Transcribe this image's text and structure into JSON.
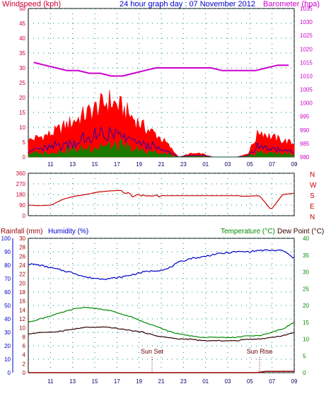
{
  "header": {
    "left_label": "Windspeed (kph)",
    "title": "24 hour graph day : 07 November 2012",
    "right_label": "Barometer (hpa)"
  },
  "colors": {
    "wind": "#ff0000",
    "gust_blue": "#0000cc",
    "gust_green": "#008800",
    "barometer": "#cc00cc",
    "direction": "#cc0000",
    "humidity": "#0000cc",
    "rainfall": "#990000",
    "temperature": "#008800",
    "dewpoint": "#330000",
    "grid": "#008888",
    "frame": "#000000"
  },
  "bottom_header": {
    "rainfall": "Rainfall (mm)",
    "humidity": "Humidity (%)",
    "temperature": "Temperature (°C)",
    "dewpoint": "Dew Point (°C)"
  },
  "annotations": {
    "sun_set": "Sun Set",
    "sun_rise": "Sun Rise"
  },
  "chart_data": [
    {
      "type": "area",
      "x": [
        "10",
        "11",
        "12",
        "13",
        "14",
        "15",
        "16",
        "17",
        "18",
        "19",
        "20",
        "21",
        "22",
        "23",
        "00",
        "01",
        "02",
        "03",
        "04",
        "05",
        "06",
        "07",
        "08",
        "09"
      ],
      "x_tick_labels": [
        "11",
        "13",
        "15",
        "17",
        "19",
        "21",
        "23",
        "01",
        "03",
        "05",
        "07",
        "09"
      ],
      "series": [
        {
          "values": [
            5,
            6,
            7,
            9,
            11,
            13,
            15,
            17,
            15,
            12,
            9,
            7,
            4,
            0,
            1,
            1,
            0,
            0,
            0,
            1,
            8,
            6,
            5,
            4
          ]
        },
        {
          "values": [
            1015,
            1014,
            1013,
            1012,
            1012,
            1011,
            1011,
            1010,
            1010,
            1011,
            1012,
            1013,
            1013,
            1013,
            1013,
            1013,
            1013,
            1012,
            1012,
            1012,
            1012,
            1013,
            1014,
            1014
          ]
        }
      ],
      "y_left": {
        "label": "Windspeed (kph)",
        "range": [
          0,
          50
        ],
        "ticks": [
          0,
          5,
          10,
          15,
          20,
          25,
          30,
          35,
          40,
          45,
          50
        ]
      },
      "y_right": {
        "label": "Barometer (hpa)",
        "range": [
          980,
          1035
        ],
        "ticks": [
          980,
          985,
          990,
          995,
          1000,
          1005,
          1010,
          1015,
          1020,
          1025,
          1030,
          1035
        ]
      }
    },
    {
      "type": "line",
      "x": [
        "10",
        "11",
        "12",
        "13",
        "14",
        "15",
        "16",
        "17",
        "18",
        "19",
        "20",
        "21",
        "22",
        "23",
        "00",
        "01",
        "02",
        "03",
        "04",
        "05",
        "06",
        "07",
        "08",
        "09"
      ],
      "x_tick_labels": [
        "11",
        "13",
        "15",
        "17",
        "19",
        "21",
        "23",
        "01",
        "03",
        "05",
        "07",
        "09"
      ],
      "values": [
        90,
        85,
        90,
        140,
        165,
        180,
        200,
        210,
        215,
        170,
        165,
        175,
        165,
        165,
        165,
        165,
        165,
        165,
        165,
        165,
        170,
        50,
        180,
        190
      ],
      "y_left": {
        "range": [
          0,
          360
        ],
        "ticks": [
          0,
          90,
          180,
          270,
          360
        ]
      },
      "y_right": {
        "labels": [
          "N",
          "W",
          "S",
          "E",
          "N"
        ]
      }
    },
    {
      "type": "line",
      "x": [
        "10",
        "11",
        "12",
        "13",
        "14",
        "15",
        "16",
        "17",
        "18",
        "19",
        "20",
        "21",
        "22",
        "23",
        "00",
        "01",
        "02",
        "03",
        "04",
        "05",
        "06",
        "07",
        "08",
        "09"
      ],
      "x_tick_labels": [
        "11",
        "13",
        "15",
        "17",
        "19",
        "21",
        "23",
        "01",
        "03",
        "05",
        "07",
        "09"
      ],
      "series": [
        {
          "name": "Humidity (%)",
          "values": [
            81,
            80,
            78,
            76,
            74,
            71,
            70,
            70,
            71,
            73,
            75,
            76,
            77,
            82,
            85,
            86,
            88,
            89,
            90,
            90,
            91,
            91,
            91,
            85
          ]
        },
        {
          "name": "Rainfall (mm)",
          "values": [
            0,
            0,
            0,
            0,
            0,
            0,
            0,
            0,
            0,
            0,
            0,
            0,
            0,
            0,
            0,
            0,
            0,
            0,
            0,
            0,
            0,
            0.3,
            0.3,
            0.3
          ]
        },
        {
          "name": "Temperature (°C)",
          "values": [
            15,
            16,
            17,
            18,
            19,
            19.5,
            19,
            18.5,
            17.5,
            16.5,
            15,
            14,
            12.5,
            11.5,
            11,
            10.5,
            10.5,
            10.5,
            10.5,
            11,
            11,
            12,
            13,
            15
          ]
        },
        {
          "name": "Dew Point (°C)",
          "values": [
            11.5,
            12,
            12,
            12.5,
            13,
            13.5,
            13.5,
            13.5,
            13,
            12.5,
            12,
            11,
            10.5,
            10,
            10,
            9.5,
            9.5,
            9.5,
            9.5,
            10,
            10,
            10.5,
            11,
            12
          ]
        }
      ],
      "y_far_left": {
        "label": "Humidity (%)",
        "range": [
          0,
          100
        ],
        "ticks": [
          0,
          10,
          20,
          30,
          40,
          50,
          60,
          70,
          80,
          90,
          100
        ]
      },
      "y_left": {
        "label": "Rainfall (mm)",
        "range": [
          0,
          30
        ],
        "ticks": [
          0,
          2,
          4,
          6,
          8,
          10,
          12,
          14,
          16,
          18,
          20,
          22,
          24,
          26,
          28,
          30
        ]
      },
      "y_right": {
        "label": "Temperature (°C)",
        "range": [
          0,
          40
        ],
        "ticks": [
          0,
          5,
          10,
          15,
          20,
          25,
          30,
          35,
          40
        ]
      }
    }
  ]
}
